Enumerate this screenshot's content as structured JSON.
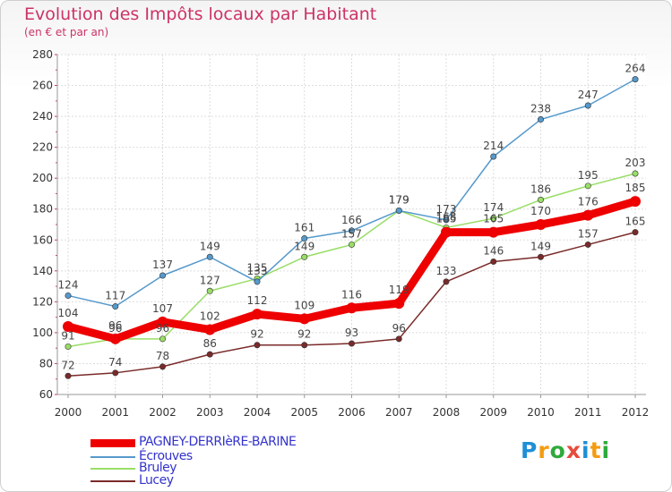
{
  "title": "Evolution des Impôts locaux par Habitant",
  "subtitle": "(en € et par an)",
  "logo": {
    "letters": [
      "P",
      "r",
      "o",
      "x",
      "i",
      "t",
      "i"
    ],
    "colors": [
      "#1f8fd6",
      "#f39c12",
      "#2eaa3a",
      "#e74c3c",
      "#1f8fd6",
      "#f39c12",
      "#2eaa3a"
    ]
  },
  "chart_data": {
    "type": "line",
    "title": "Evolution des Impôts locaux par Habitant",
    "subtitle": "(en € et par an)",
    "x": [
      2000,
      2001,
      2002,
      2003,
      2004,
      2005,
      2006,
      2007,
      2008,
      2009,
      2010,
      2011,
      2012
    ],
    "ylim": [
      60,
      280
    ],
    "yticks": [
      60,
      80,
      100,
      120,
      140,
      160,
      180,
      200,
      220,
      240,
      260,
      280
    ],
    "grid": true,
    "legend": "bottom-left",
    "series": [
      {
        "name": "Lucey",
        "color": "#7a2a2a",
        "values": [
          72,
          74,
          78,
          86,
          92,
          92,
          93,
          96,
          133,
          146,
          149,
          157,
          165
        ]
      },
      {
        "name": "Bruley",
        "color": "#99dd66",
        "values": [
          91,
          96,
          96,
          127,
          135,
          149,
          157,
          179,
          168,
          174,
          186,
          195,
          203
        ]
      },
      {
        "name": "Écrouves",
        "color": "#5599cc",
        "values": [
          124,
          117,
          137,
          149,
          133,
          161,
          166,
          179,
          173,
          214,
          238,
          247,
          264
        ]
      },
      {
        "name": "PAGNEY-DERRIèRE-BARINE",
        "color": "#ee0000",
        "values": [
          104,
          96,
          107,
          102,
          112,
          109,
          116,
          119,
          165,
          165,
          170,
          176,
          185
        ]
      }
    ]
  }
}
